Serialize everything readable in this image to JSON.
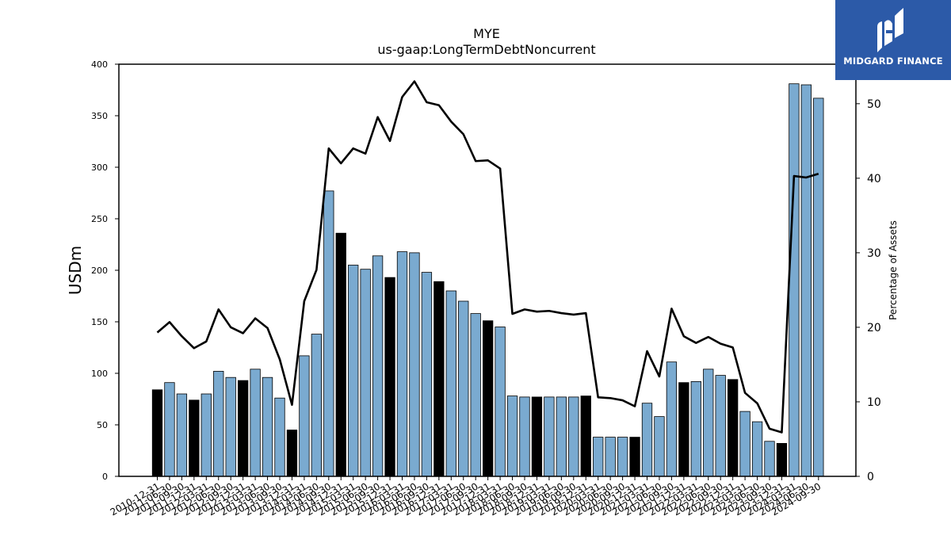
{
  "brand": {
    "name": "MIDGARD FINANCE",
    "bg_color": "#2c5aa8"
  },
  "chart_data": {
    "type": "bar",
    "title": "MYE",
    "subtitle": "us-gaap:LongTermDebtNoncurrent",
    "ylabel": "USDm",
    "y2label": "Percentage of Assets",
    "ylim": [
      0,
      400
    ],
    "y2lim": [
      0,
      55.3
    ],
    "yticks": [
      0,
      50,
      100,
      150,
      200,
      250,
      300,
      350,
      400
    ],
    "y2ticks": [
      0,
      10,
      20,
      30,
      40,
      50
    ],
    "grid": false,
    "colors": {
      "bar_fy": "#000000",
      "bar_q": "#7aaad0",
      "line": "#000000"
    },
    "categories": [
      "2010-12-31",
      "2011-06-30",
      "2011-09-30",
      "2011-12-31",
      "2012-03-31",
      "2012-06-30",
      "2012-09-30",
      "2012-12-31",
      "2013-03-31",
      "2013-06-30",
      "2013-09-30",
      "2013-12-31",
      "2014-03-31",
      "2014-06-30",
      "2014-09-30",
      "2014-12-31",
      "2015-03-31",
      "2015-06-30",
      "2015-09-30",
      "2015-12-31",
      "2016-03-31",
      "2016-06-30",
      "2016-09-30",
      "2016-12-31",
      "2017-03-31",
      "2017-06-30",
      "2017-09-30",
      "2017-12-31",
      "2018-03-31",
      "2018-06-30",
      "2018-09-30",
      "2018-12-31",
      "2019-03-31",
      "2019-06-30",
      "2019-09-30",
      "2019-12-31",
      "2020-03-31",
      "2020-06-30",
      "2020-09-30",
      "2020-12-31",
      "2021-03-31",
      "2021-06-30",
      "2021-09-30",
      "2021-12-31",
      "2022-03-31",
      "2022-06-30",
      "2022-09-30",
      "2022-12-31",
      "2023-03-31",
      "2023-06-30",
      "2023-09-30",
      "2023-12-31",
      "2024-03-31",
      "2024-06-30",
      "2024-09-30"
    ],
    "tick_labels": [
      "2010-12-31",
      "2011-06-30",
      "2011-09-30",
      "2011-12-31",
      "2012-03-31",
      "2012-06-30",
      "2012-09-30",
      "2012-12-31",
      "2013-03-31",
      "2013-06-30",
      "2013-09-30",
      "2013-12-31",
      "2014-03-31",
      "2014-06-30",
      "2014-09-30",
      "2014-12-31",
      "2015-03-31",
      "2015-06-30",
      "2015-09-30",
      "2015-12-31",
      "2016-03-31",
      "2016-06-30",
      "2016-09-30",
      "2016-12-31",
      "2017-03-31",
      "2017-06-30",
      "2017-09-30",
      "2017-12-31",
      "2018-03-31",
      "2018-06-30",
      "2018-09-30",
      "2018-12-31",
      "2019-03-31",
      "2019-06-30",
      "2019-09-30",
      "2019-12-31",
      "2020-03-31",
      "2020-06-30",
      "2020-09-30",
      "2020-12-31",
      "2021-03-31",
      "2021-06-30",
      "2021-09-30",
      "2021-12-31",
      "2022-03-31",
      "2022-06-30",
      "2022-09-30",
      "2022-12-31",
      "2023-03-31",
      "2023-06-30",
      "2023-09-30",
      "2023-12-31",
      "2024-03-31",
      "2024-06-30",
      "2024-09-30"
    ],
    "series": [
      {
        "type": "bar",
        "axis": "left",
        "values": [
          84,
          91,
          80,
          74,
          80,
          102,
          96,
          93,
          104,
          96,
          76,
          45,
          117,
          138,
          277,
          236,
          205,
          201,
          214,
          193,
          218,
          217,
          198,
          189,
          180,
          170,
          158,
          151,
          145,
          78,
          77,
          77,
          77,
          77,
          77,
          78,
          38,
          38,
          38,
          38,
          71,
          58,
          111,
          91,
          92,
          104,
          98,
          94,
          63,
          53,
          34,
          32,
          381,
          380,
          367
        ],
        "fiscal_year_end": [
          true,
          false,
          false,
          true,
          false,
          false,
          false,
          true,
          false,
          false,
          false,
          true,
          false,
          false,
          false,
          true,
          false,
          false,
          false,
          true,
          false,
          false,
          false,
          true,
          false,
          false,
          false,
          true,
          false,
          false,
          false,
          true,
          false,
          false,
          false,
          true,
          false,
          false,
          false,
          true,
          false,
          false,
          false,
          true,
          false,
          false,
          false,
          true,
          false,
          false,
          false,
          true,
          false,
          false,
          false
        ]
      },
      {
        "type": "line",
        "axis": "right",
        "values": [
          19.3,
          20.7,
          18.8,
          17.2,
          18.1,
          22.4,
          20.0,
          19.2,
          21.2,
          19.9,
          15.7,
          9.6,
          23.5,
          27.7,
          44.0,
          42.0,
          44.0,
          43.3,
          48.2,
          45.0,
          50.9,
          53.0,
          50.2,
          49.8,
          47.6,
          45.9,
          42.3,
          42.4,
          41.3,
          21.8,
          22.4,
          22.1,
          22.2,
          21.9,
          21.7,
          21.9,
          10.6,
          10.5,
          10.2,
          9.4,
          16.8,
          13.4,
          22.5,
          18.8,
          17.9,
          18.7,
          17.8,
          17.3,
          11.2,
          9.8,
          6.4,
          5.9,
          40.3,
          40.1,
          40.6
        ]
      }
    ]
  }
}
